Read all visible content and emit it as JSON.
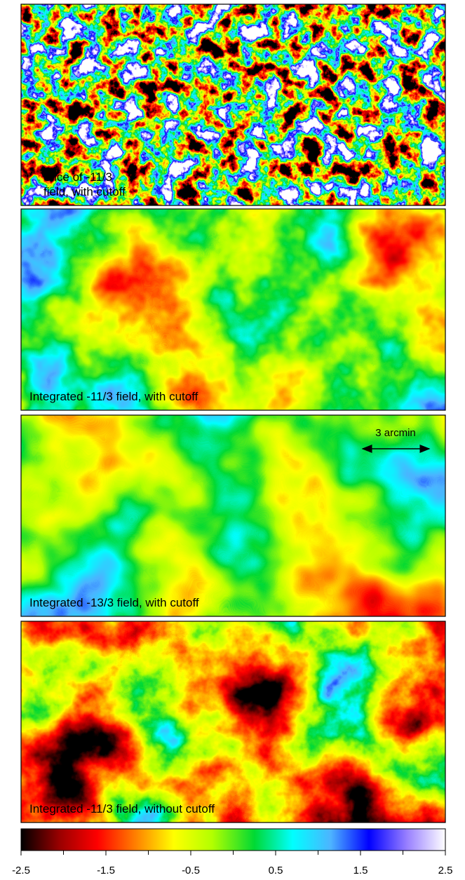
{
  "panels": [
    {
      "label_lines": [
        "Slice of -11/3",
        "field, with cutoff"
      ]
    },
    {
      "label_lines": [
        "Integrated -11/3 field, with cutoff"
      ]
    },
    {
      "label_lines": [
        "Integrated -13/3 field, with cutoff"
      ],
      "scale_bar": "3 arcmin"
    },
    {
      "label_lines": [
        "Integrated -11/3 field, without cutoff"
      ]
    }
  ],
  "colorbar": {
    "lim": [
      -2.5,
      2.5
    ],
    "ticks": [
      -2.5,
      -1.5,
      -0.5,
      0.5,
      1.5,
      2.5
    ],
    "minor_ticks": [
      -2,
      -1,
      0,
      1,
      2
    ]
  }
}
